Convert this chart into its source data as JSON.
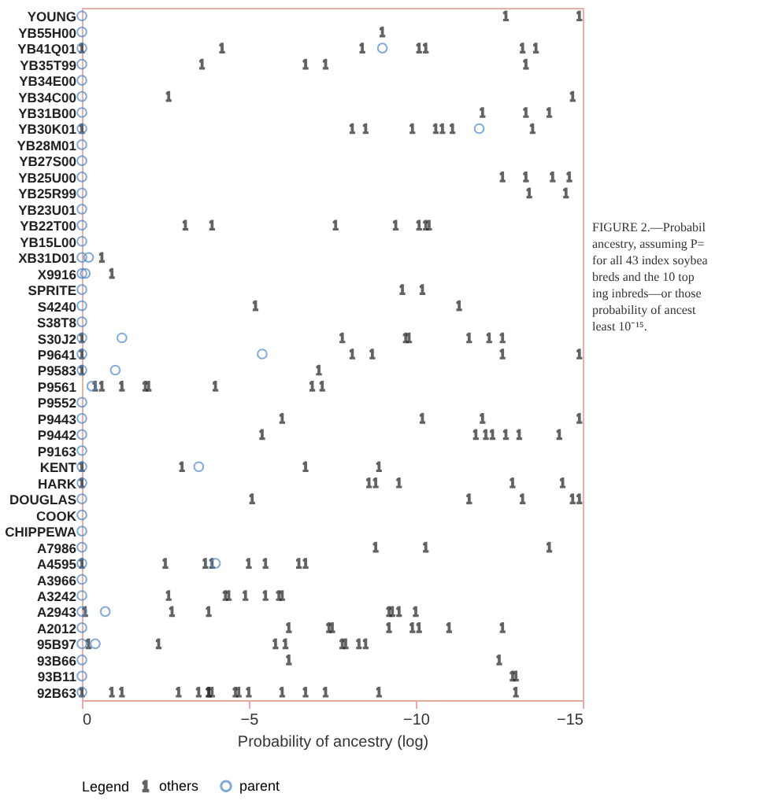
{
  "chart_data": {
    "type": "scatter",
    "orientation": "horizontal",
    "xlabel": "Probability of ancestry (log)",
    "legend_title": "Legend",
    "legend": "bottom",
    "grid": false,
    "xlim": [
      0,
      -15
    ],
    "xticks": [
      0,
      -5,
      -10,
      -15
    ],
    "categories": [
      "YOUNG",
      "YB55H00",
      "YB41Q01",
      "YB35T99",
      "YB34E00",
      "YB34C00",
      "YB31B00",
      "YB30K01",
      "YB28M01",
      "YB27S00",
      "YB25U00",
      "YB25R99",
      "YB23U01",
      "YB22T00",
      "YB15L00",
      "XB31D01",
      "X9916",
      "SPRITE",
      "S4240",
      "S38T8",
      "S30J2",
      "P9641",
      "P9583",
      "P9561",
      "P9552",
      "P9443",
      "P9442",
      "P9163",
      "KENT",
      "HARK",
      "DOUGLAS",
      "COOK",
      "CHIPPEWA",
      "A7986",
      "A4595",
      "A3966",
      "A3242",
      "A2943",
      "A2012",
      "95B97",
      "93B66",
      "93B11",
      "92B63"
    ],
    "series": [
      {
        "name": "others",
        "color": "#222222",
        "x": [
          "YOUNG",
          "YOUNG",
          "YB55H00",
          "YB41Q01",
          "YB41Q01",
          "YB41Q01",
          "YB41Q01",
          "YB41Q01",
          "YB41Q01",
          "YB41Q01",
          "YB35T99",
          "YB35T99",
          "YB35T99",
          "YB35T99",
          "YB34C00",
          "YB34C00",
          "YB31B00",
          "YB31B00",
          "YB31B00",
          "YB30K01",
          "YB30K01",
          "YB30K01",
          "YB30K01",
          "YB30K01",
          "YB30K01",
          "YB30K01",
          "YB30K01",
          "YB25U00",
          "YB25U00",
          "YB25U00",
          "YB25U00",
          "YB25R99",
          "YB25R99",
          "YB22T00",
          "YB22T00",
          "YB22T00",
          "YB22T00",
          "YB22T00",
          "YB22T00",
          "YB22T00",
          "XB31D01",
          "X9916",
          "SPRITE",
          "SPRITE",
          "S4240",
          "S4240",
          "S30J2",
          "S30J2",
          "S30J2",
          "S30J2",
          "S30J2",
          "S30J2",
          "S30J2",
          "P9641",
          "P9641",
          "P9641",
          "P9641",
          "P9641",
          "P9583",
          "P9583",
          "P9561",
          "P9561",
          "P9561",
          "P9561",
          "P9561",
          "P9561",
          "P9561",
          "P9561",
          "P9443",
          "P9443",
          "P9443",
          "P9443",
          "P9442",
          "P9442",
          "P9442",
          "P9442",
          "P9442",
          "P9442",
          "P9442",
          "KENT",
          "KENT",
          "KENT",
          "KENT",
          "HARK",
          "HARK",
          "HARK",
          "HARK",
          "HARK",
          "HARK",
          "DOUGLAS",
          "DOUGLAS",
          "DOUGLAS",
          "DOUGLAS",
          "DOUGLAS",
          "A7986",
          "A7986",
          "A7986",
          "A4595",
          "A4595",
          "A4595",
          "A4595",
          "A4595",
          "A4595",
          "A4595",
          "A4595",
          "A3242",
          "A3242",
          "A3242",
          "A3242",
          "A3242",
          "A3242",
          "A3242",
          "A2943",
          "A2943",
          "A2943",
          "A2943",
          "A2943",
          "A2943",
          "A2943",
          "A2012",
          "A2012",
          "A2012",
          "A2012",
          "A2012",
          "A2012",
          "A2012",
          "A2012",
          "95B97",
          "95B97",
          "95B97",
          "95B97",
          "95B97",
          "95B97",
          "95B97",
          "95B97",
          "93B66",
          "93B66",
          "93B11",
          "93B11",
          "92B63",
          "92B63",
          "92B63",
          "92B63",
          "92B63",
          "92B63",
          "92B63",
          "92B63",
          "92B63",
          "92B63",
          "92B63",
          "92B63",
          "92B63",
          "92B63",
          "92B63",
          "92B63"
        ],
        "values": [
          -12.7,
          -14.9,
          -9.0,
          0,
          -4.2,
          -8.4,
          -10.1,
          -10.3,
          -13.2,
          -13.6,
          -3.6,
          -6.7,
          -7.3,
          -13.3,
          -2.6,
          -14.7,
          -12.0,
          -13.3,
          -14.0,
          0,
          -8.1,
          -8.5,
          -9.9,
          -10.6,
          -10.8,
          -11.1,
          -13.5,
          -12.6,
          -13.3,
          -14.1,
          -14.6,
          -13.4,
          -14.5,
          -3.1,
          -3.9,
          -7.6,
          -9.4,
          -10.1,
          -10.3,
          -10.4,
          -0.6,
          -0.9,
          -9.6,
          -10.2,
          -5.2,
          -11.3,
          0,
          -7.8,
          -9.7,
          -9.8,
          -11.6,
          -12.2,
          -12.6,
          0,
          -8.1,
          -8.7,
          -12.6,
          -14.9,
          0,
          -7.1,
          -0.4,
          -0.6,
          -1.2,
          -1.9,
          -2.0,
          -4.0,
          -6.9,
          -7.2,
          -6.0,
          -10.2,
          -12.0,
          -14.9,
          -5.4,
          -11.8,
          -12.1,
          -12.3,
          -12.7,
          -13.1,
          -14.3,
          0,
          -3.0,
          -6.7,
          -8.9,
          0,
          -8.6,
          -8.8,
          -9.5,
          -12.9,
          -14.4,
          -5.1,
          -11.6,
          -13.2,
          -14.7,
          -14.9,
          -8.8,
          -10.3,
          -14.0,
          0,
          -2.5,
          -3.7,
          -3.9,
          -5.0,
          -5.5,
          -6.5,
          -6.7,
          -2.6,
          -4.3,
          -4.4,
          -4.9,
          -5.5,
          -5.9,
          -6.0,
          -0.1,
          -2.7,
          -3.8,
          -9.2,
          -9.3,
          -9.5,
          -10.0,
          -6.2,
          -7.4,
          -7.5,
          -9.2,
          -9.9,
          -10.1,
          -11.0,
          -12.6,
          -0.2,
          -2.3,
          -5.8,
          -6.1,
          -7.8,
          -7.9,
          -8.3,
          -8.5,
          -6.2,
          -12.5,
          -12.9,
          -13.0,
          0,
          -0.9,
          -1.2,
          -2.9,
          -3.5,
          -3.8,
          -3.8,
          -3.9,
          -4.6,
          -4.7,
          -5.0,
          -6.0,
          -6.7,
          -7.3,
          -8.9,
          -13.0
        ]
      },
      {
        "name": "parent",
        "color": "#4a86c8",
        "marker": "circle",
        "x": [
          "YOUNG",
          "YB55H00",
          "YB41Q01",
          "YB41Q01",
          "YB35T99",
          "YB34E00",
          "YB34C00",
          "YB31B00",
          "YB30K01",
          "YB30K01",
          "YB28M01",
          "YB27S00",
          "YB25U00",
          "YB25R99",
          "YB23U01",
          "YB22T00",
          "YB15L00",
          "XB31D01",
          "XB31D01",
          "X9916",
          "X9916",
          "SPRITE",
          "S4240",
          "S38T8",
          "S30J2",
          "S30J2",
          "P9641",
          "P9641",
          "P9583",
          "P9583",
          "P9561",
          "P9552",
          "P9443",
          "P9442",
          "P9163",
          "KENT",
          "KENT",
          "HARK",
          "DOUGLAS",
          "COOK",
          "CHIPPEWA",
          "A7986",
          "A4595",
          "A4595",
          "A3966",
          "A3242",
          "A2943",
          "A2943",
          "A2012",
          "95B97",
          "95B97",
          "93B66",
          "93B11",
          "92B63"
        ],
        "values": [
          0,
          0,
          0,
          -9.0,
          0,
          0,
          0,
          0,
          0,
          -11.9,
          0,
          0,
          0,
          0,
          0,
          0,
          0,
          0,
          -0.2,
          0,
          -0.1,
          0,
          0,
          0,
          0,
          -1.2,
          0,
          -5.4,
          0,
          -1.0,
          -0.3,
          0,
          0,
          0,
          0,
          0,
          -3.5,
          0,
          0,
          0,
          0,
          0,
          0,
          -4.0,
          0,
          0,
          0,
          -0.7,
          0,
          0,
          -0.4,
          0,
          0,
          0
        ]
      }
    ],
    "annotations": [
      "FIGURE 2.—Probabil",
      "ancestry, assuming P=",
      "for all 43 index soybea",
      "breds and the 10 top",
      "ing inbreds—or those",
      "probability of ancest",
      "least 10⁻¹⁵."
    ]
  }
}
